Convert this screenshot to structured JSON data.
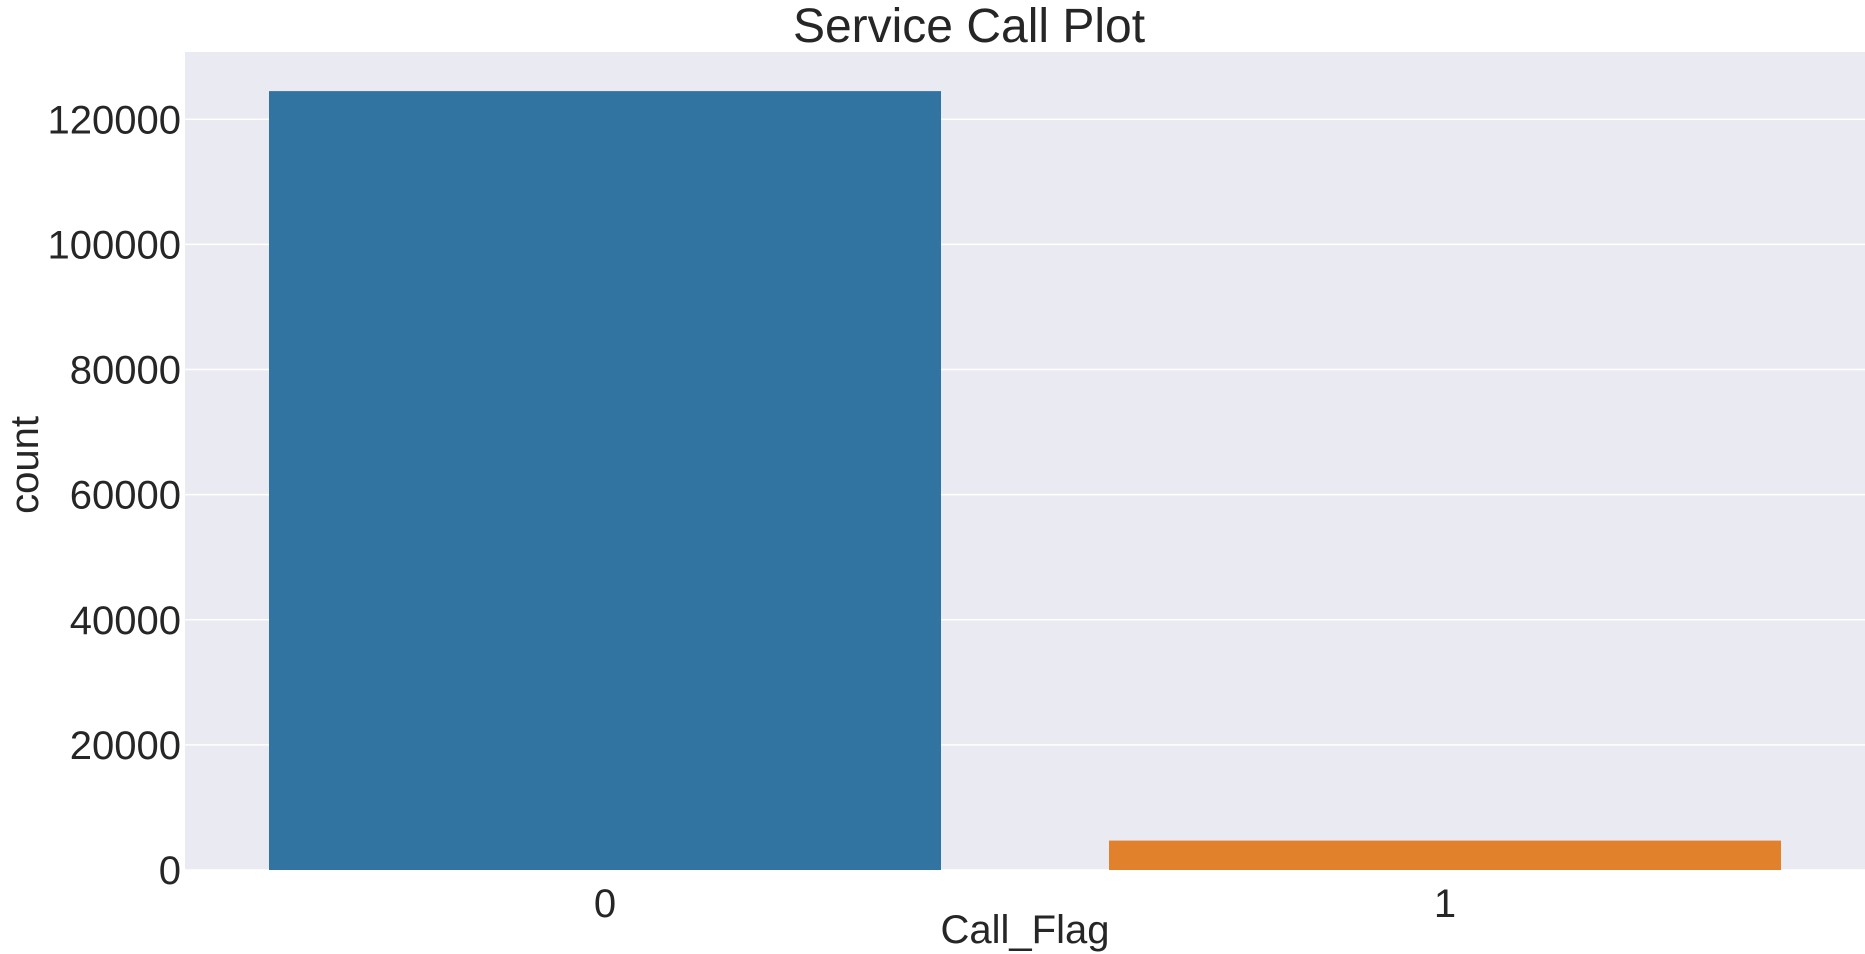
{
  "chart_data": {
    "type": "bar",
    "title": "Service Call Plot",
    "xlabel": "Call_Flag",
    "ylabel": "count",
    "categories": [
      "0",
      "1"
    ],
    "values": [
      124500,
      4700
    ],
    "ylim": [
      0,
      130750
    ],
    "yticks": [
      0,
      20000,
      40000,
      60000,
      80000,
      100000,
      120000
    ],
    "colors": [
      "#3274a1",
      "#e1812c"
    ],
    "background": "#eaeaf2",
    "grid": true
  }
}
